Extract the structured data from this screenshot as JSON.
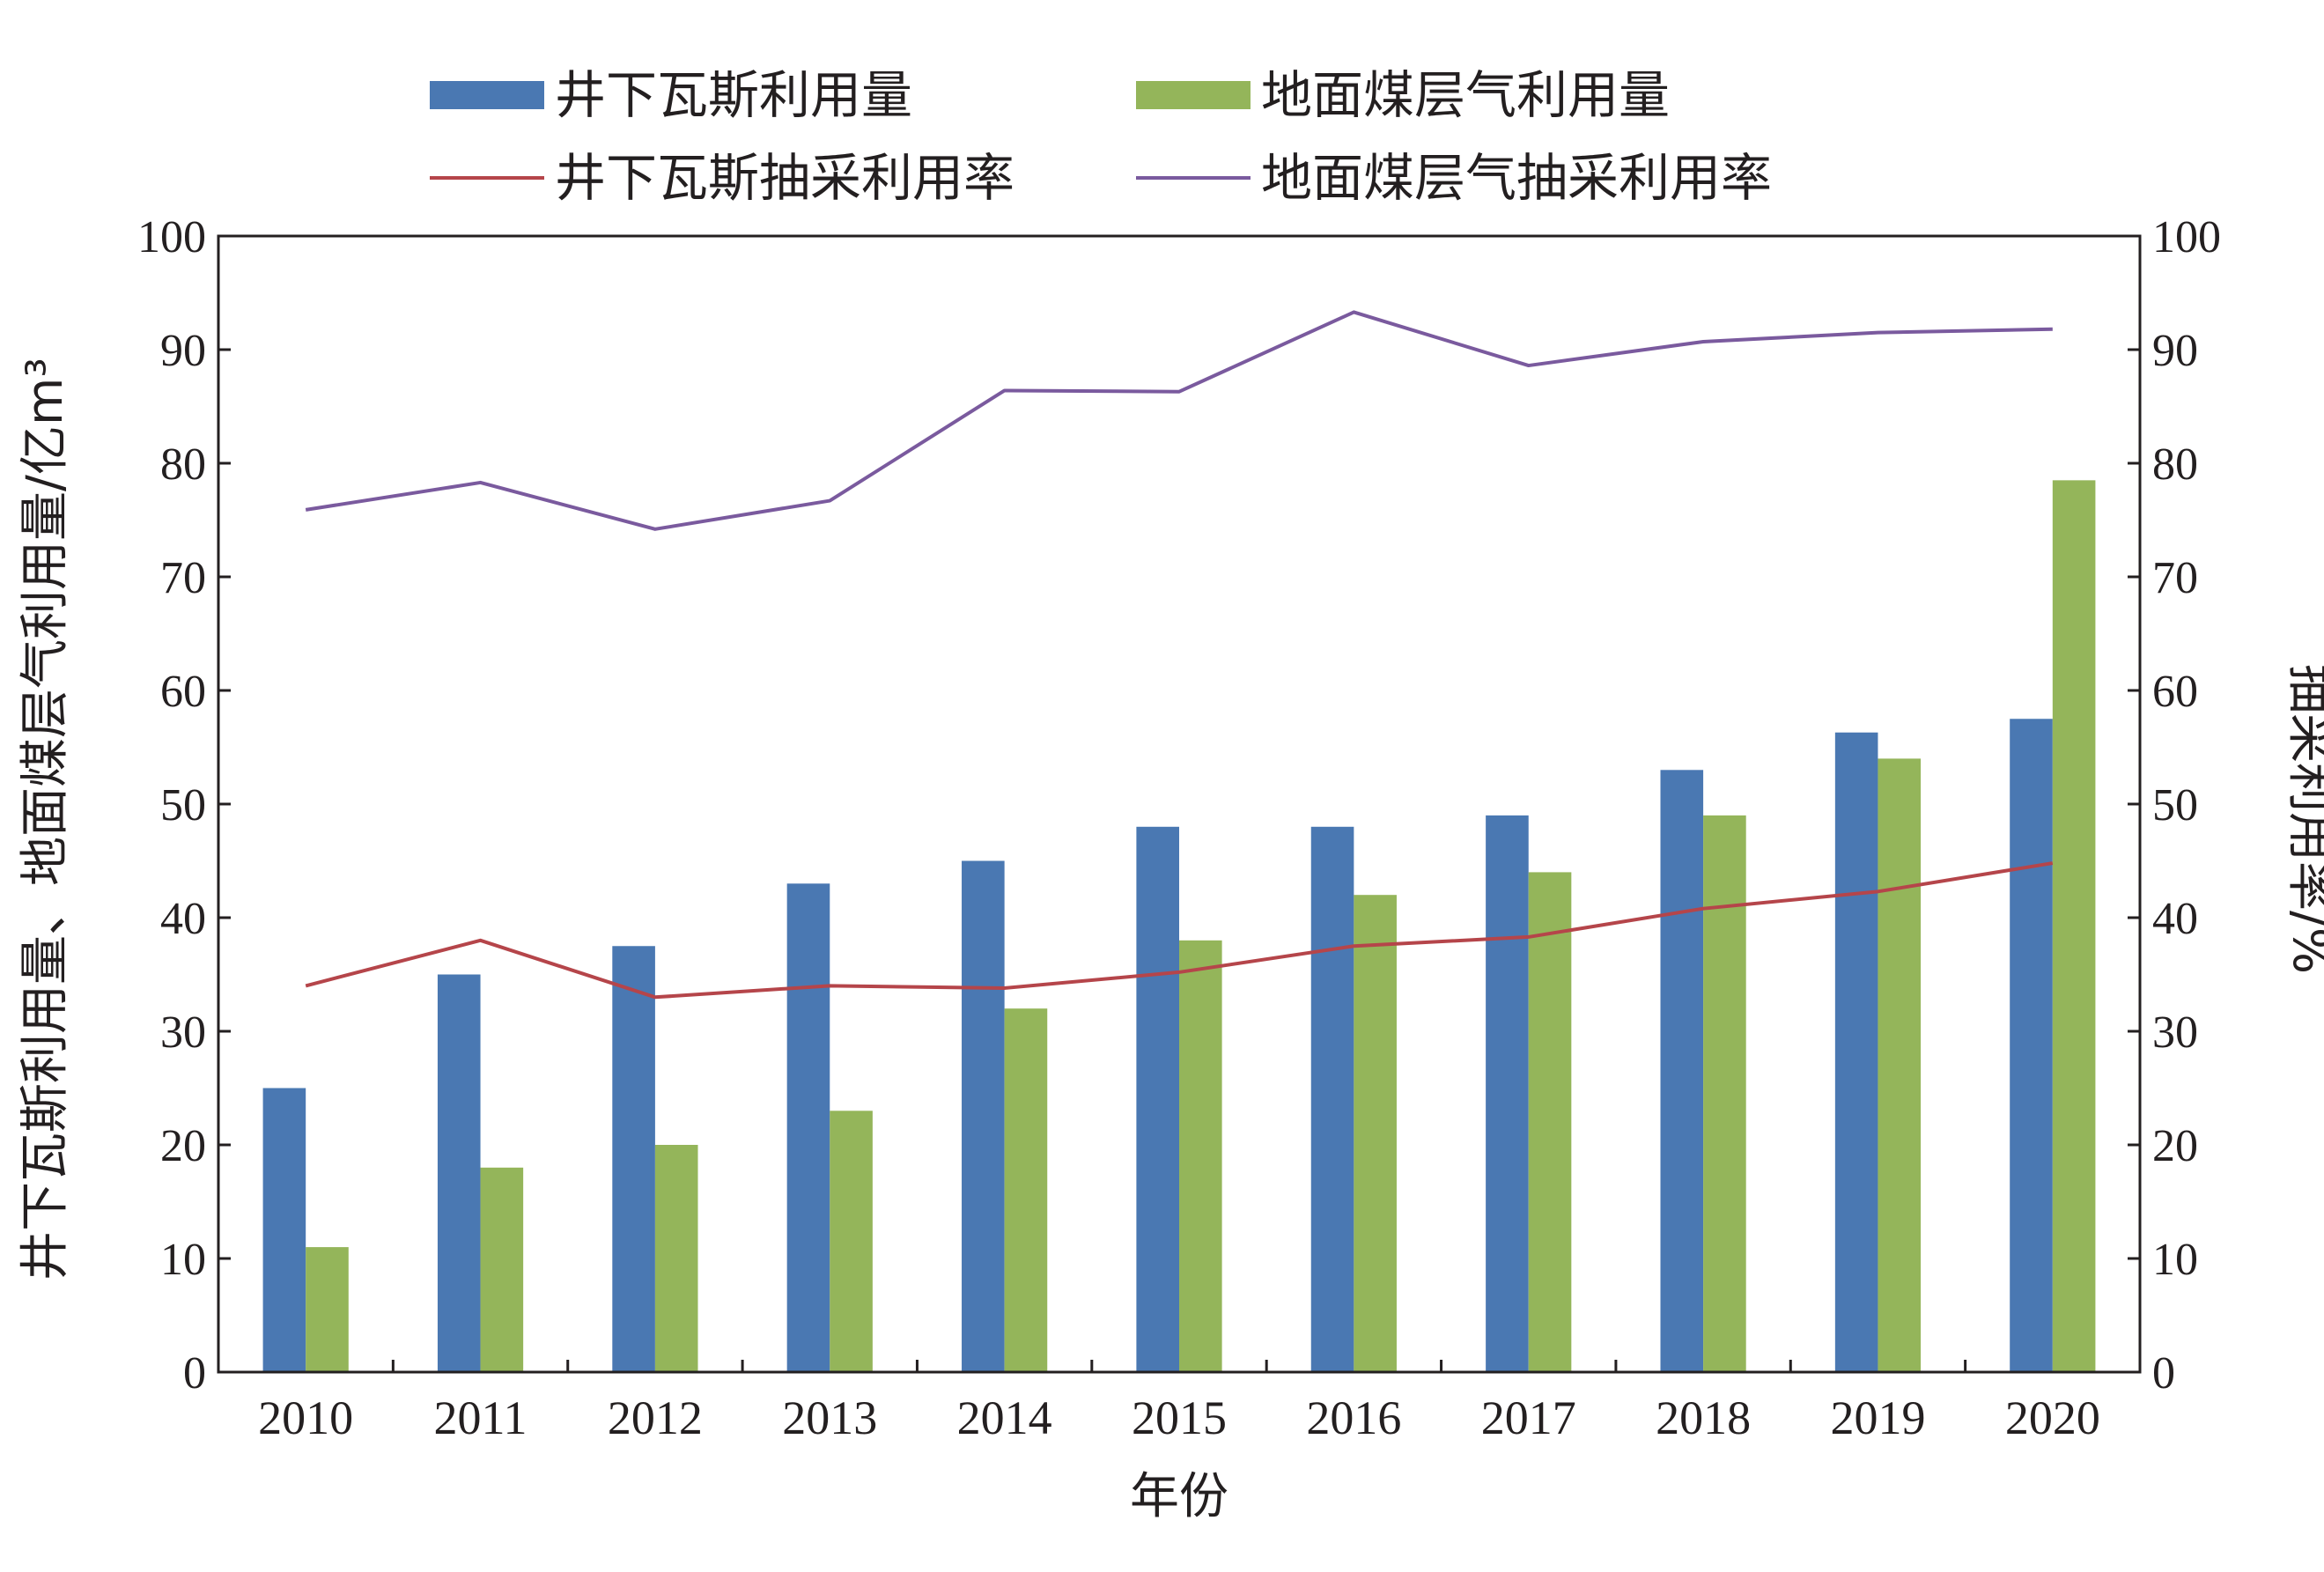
{
  "chart_data": {
    "type": "bar",
    "categories": [
      "2010",
      "2011",
      "2012",
      "2013",
      "2014",
      "2015",
      "2016",
      "2017",
      "2018",
      "2019",
      "2020"
    ],
    "series": [
      {
        "name": "井下瓦斯利用量",
        "kind": "bar",
        "axis": "left",
        "color": "#4a78b2",
        "values": [
          25,
          35,
          37.5,
          43,
          45,
          48,
          48,
          49,
          53,
          56.3,
          57.5
        ]
      },
      {
        "name": "地面煤层气利用量",
        "kind": "bar",
        "axis": "left",
        "color": "#94b55a",
        "values": [
          11,
          18,
          20,
          23,
          32,
          38,
          42,
          44,
          49,
          54,
          78.5
        ]
      },
      {
        "name": "井下瓦斯抽采利用率",
        "kind": "line",
        "axis": "right",
        "color": "#b5454a",
        "values": [
          34,
          38,
          33,
          34,
          33.8,
          35.2,
          37.5,
          38.3,
          40.8,
          42.3,
          44.8
        ]
      },
      {
        "name": "地面煤层气抽采利用率",
        "kind": "line",
        "axis": "right",
        "color": "#7a5a9e",
        "values": [
          75.9,
          78.3,
          74.2,
          76.7,
          86.4,
          86.3,
          93.3,
          88.6,
          90.7,
          91.5,
          91.8
        ]
      }
    ],
    "xlabel": "年份",
    "ylabel": "井下瓦斯利用量、地面煤层气利用量/亿m³",
    "y2label": "抽采利用率/%",
    "ylim": [
      0,
      100
    ],
    "y2lim": [
      0,
      100
    ],
    "yticks": [
      "0",
      "10",
      "20",
      "30",
      "40",
      "50",
      "60",
      "70",
      "80",
      "90",
      "100"
    ],
    "y2ticks": [
      "0",
      "10",
      "20",
      "30",
      "40",
      "50",
      "60",
      "70",
      "80",
      "90",
      "100"
    ],
    "grid": false,
    "legend_position": "top"
  }
}
